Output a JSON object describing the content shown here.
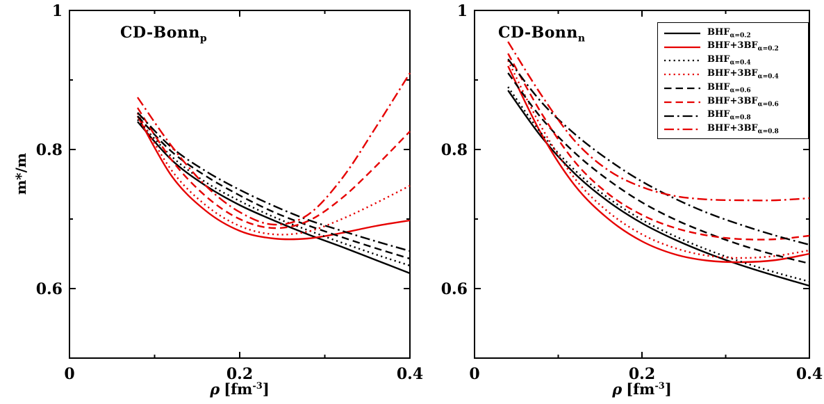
{
  "figure": {
    "background": "#ffffff",
    "frame_color": "#000000",
    "red": "#e60000",
    "black": "#000000"
  },
  "axes": {
    "x_symbol": "ρ",
    "x_unit_pre": "[fm",
    "x_exponent": "-3",
    "x_unit_post": "]",
    "y_label": "m*/m"
  },
  "legend": {
    "items": [
      {
        "main": "BHF",
        "sub": "α=0.2",
        "color": "#000000",
        "dash": "solid"
      },
      {
        "main": "BHF+3BF",
        "sub": "α=0.2",
        "color": "#e60000",
        "dash": "solid"
      },
      {
        "main": "BHF",
        "sub": "α=0.4",
        "color": "#000000",
        "dash": "dotted"
      },
      {
        "main": "BHF+3BF",
        "sub": "α=0.4",
        "color": "#e60000",
        "dash": "dotted"
      },
      {
        "main": "BHF",
        "sub": "α=0.6",
        "color": "#000000",
        "dash": "dashed"
      },
      {
        "main": "BHF+3BF",
        "sub": "α=0.6",
        "color": "#e60000",
        "dash": "dashed"
      },
      {
        "main": "BHF",
        "sub": "α=0.8",
        "color": "#000000",
        "dash": "dashdot"
      },
      {
        "main": "BHF+3BF",
        "sub": "α=0.8",
        "color": "#e60000",
        "dash": "dashdot"
      }
    ]
  },
  "chart_data": [
    {
      "type": "line",
      "title_main": "CD-Bonn",
      "title_sub": "p",
      "xlabel": "ρ [fm^-3]",
      "ylabel": "m*/m",
      "xlim": [
        0,
        0.4
      ],
      "ylim": [
        0.5,
        1.0
      ],
      "grid": false,
      "xticks": {
        "major": [
          0,
          0.2,
          0.4
        ],
        "labels": [
          "0",
          "0.2",
          "0.4"
        ],
        "minor": [
          0.1,
          0.3
        ]
      },
      "yticks": {
        "major": [
          0.6,
          0.8,
          1.0
        ],
        "labels": [
          "0.6",
          "0.8",
          "1"
        ],
        "minor": [
          0.5,
          0.7,
          0.9
        ]
      },
      "series": [
        {
          "name": "BHF α=0.2",
          "color": "#000000",
          "dash": "solid",
          "x": [
            0.08,
            0.12,
            0.16,
            0.2,
            0.24,
            0.28,
            0.32,
            0.36,
            0.4
          ],
          "y": [
            0.84,
            0.785,
            0.748,
            0.72,
            0.698,
            0.678,
            0.66,
            0.641,
            0.622
          ]
        },
        {
          "name": "BHF+3BF α=0.2",
          "color": "#e60000",
          "dash": "solid",
          "x": [
            0.08,
            0.12,
            0.16,
            0.2,
            0.24,
            0.28,
            0.32,
            0.36,
            0.4
          ],
          "y": [
            0.848,
            0.762,
            0.712,
            0.683,
            0.672,
            0.672,
            0.68,
            0.69,
            0.698
          ]
        },
        {
          "name": "BHF α=0.4",
          "color": "#000000",
          "dash": "dotted",
          "x": [
            0.08,
            0.12,
            0.16,
            0.2,
            0.24,
            0.28,
            0.32,
            0.36,
            0.4
          ],
          "y": [
            0.843,
            0.79,
            0.753,
            0.726,
            0.703,
            0.684,
            0.666,
            0.649,
            0.633
          ]
        },
        {
          "name": "BHF+3BF α=0.4",
          "color": "#e60000",
          "dash": "dotted",
          "x": [
            0.08,
            0.12,
            0.16,
            0.2,
            0.24,
            0.28,
            0.32,
            0.36,
            0.4
          ],
          "y": [
            0.852,
            0.77,
            0.72,
            0.69,
            0.678,
            0.682,
            0.7,
            0.723,
            0.748
          ]
        },
        {
          "name": "BHF α=0.6",
          "color": "#000000",
          "dash": "dashed",
          "x": [
            0.08,
            0.12,
            0.16,
            0.2,
            0.24,
            0.28,
            0.32,
            0.36,
            0.4
          ],
          "y": [
            0.848,
            0.797,
            0.762,
            0.734,
            0.71,
            0.691,
            0.674,
            0.658,
            0.643
          ]
        },
        {
          "name": "BHF+3BF α=0.6",
          "color": "#e60000",
          "dash": "dashed",
          "x": [
            0.08,
            0.12,
            0.16,
            0.2,
            0.24,
            0.28,
            0.32,
            0.36,
            0.4
          ],
          "y": [
            0.86,
            0.785,
            0.733,
            0.7,
            0.687,
            0.697,
            0.73,
            0.776,
            0.826
          ]
        },
        {
          "name": "BHF α=0.8",
          "color": "#000000",
          "dash": "dashdot",
          "x": [
            0.08,
            0.12,
            0.16,
            0.2,
            0.24,
            0.28,
            0.32,
            0.36,
            0.4
          ],
          "y": [
            0.853,
            0.803,
            0.769,
            0.742,
            0.719,
            0.699,
            0.683,
            0.668,
            0.654
          ]
        },
        {
          "name": "BHF+3BF α=0.8",
          "color": "#e60000",
          "dash": "dashdot",
          "x": [
            0.08,
            0.12,
            0.16,
            0.2,
            0.24,
            0.28,
            0.32,
            0.36,
            0.4
          ],
          "y": [
            0.875,
            0.805,
            0.748,
            0.71,
            0.692,
            0.706,
            0.758,
            0.832,
            0.91
          ]
        }
      ]
    },
    {
      "type": "line",
      "title_main": "CD-Bonn",
      "title_sub": "n",
      "xlabel": "ρ [fm^-3]",
      "ylabel": "m*/m",
      "xlim": [
        0,
        0.4
      ],
      "ylim": [
        0.5,
        1.0
      ],
      "grid": false,
      "xticks": {
        "major": [
          0,
          0.2,
          0.4
        ],
        "labels": [
          "0",
          "0.2",
          "0.4"
        ],
        "minor": [
          0.1,
          0.3
        ]
      },
      "yticks": {
        "major": [
          0.6,
          0.8,
          1.0
        ],
        "labels": [
          "0.6",
          "0.8",
          "1"
        ],
        "minor": [
          0.5,
          0.7,
          0.9
        ]
      },
      "series": [
        {
          "name": "BHF α=0.2",
          "color": "#000000",
          "dash": "solid",
          "x": [
            0.04,
            0.08,
            0.12,
            0.16,
            0.2,
            0.24,
            0.28,
            0.32,
            0.36,
            0.4
          ],
          "y": [
            0.885,
            0.818,
            0.765,
            0.725,
            0.694,
            0.67,
            0.65,
            0.633,
            0.618,
            0.604
          ]
        },
        {
          "name": "BHF+3BF α=0.2",
          "color": "#e60000",
          "dash": "solid",
          "x": [
            0.04,
            0.08,
            0.12,
            0.16,
            0.2,
            0.24,
            0.28,
            0.32,
            0.36,
            0.4
          ],
          "y": [
            0.92,
            0.822,
            0.748,
            0.7,
            0.668,
            0.649,
            0.64,
            0.638,
            0.641,
            0.65
          ]
        },
        {
          "name": "BHF α=0.4",
          "color": "#000000",
          "dash": "dotted",
          "x": [
            0.04,
            0.08,
            0.12,
            0.16,
            0.2,
            0.24,
            0.28,
            0.32,
            0.36,
            0.4
          ],
          "y": [
            0.89,
            0.823,
            0.77,
            0.73,
            0.699,
            0.675,
            0.655,
            0.638,
            0.623,
            0.61
          ]
        },
        {
          "name": "BHF+3BF α=0.4",
          "color": "#e60000",
          "dash": "dotted",
          "x": [
            0.04,
            0.08,
            0.12,
            0.16,
            0.2,
            0.24,
            0.28,
            0.32,
            0.36,
            0.4
          ],
          "y": [
            0.928,
            0.832,
            0.758,
            0.71,
            0.678,
            0.658,
            0.647,
            0.644,
            0.647,
            0.655
          ]
        },
        {
          "name": "BHF α=0.6",
          "color": "#000000",
          "dash": "dashed",
          "x": [
            0.04,
            0.08,
            0.12,
            0.16,
            0.2,
            0.24,
            0.28,
            0.32,
            0.36,
            0.4
          ],
          "y": [
            0.91,
            0.845,
            0.795,
            0.756,
            0.724,
            0.699,
            0.679,
            0.662,
            0.648,
            0.636
          ]
        },
        {
          "name": "BHF+3BF α=0.6",
          "color": "#e60000",
          "dash": "dashed",
          "x": [
            0.04,
            0.08,
            0.12,
            0.16,
            0.2,
            0.24,
            0.28,
            0.32,
            0.36,
            0.4
          ],
          "y": [
            0.938,
            0.852,
            0.782,
            0.736,
            0.706,
            0.687,
            0.676,
            0.671,
            0.671,
            0.676
          ]
        },
        {
          "name": "BHF α=0.8",
          "color": "#000000",
          "dash": "dashdot",
          "x": [
            0.04,
            0.08,
            0.12,
            0.16,
            0.2,
            0.24,
            0.28,
            0.32,
            0.36,
            0.4
          ],
          "y": [
            0.93,
            0.868,
            0.822,
            0.785,
            0.754,
            0.729,
            0.708,
            0.691,
            0.676,
            0.663
          ]
        },
        {
          "name": "BHF+3BF α=0.8",
          "color": "#e60000",
          "dash": "dashdot",
          "x": [
            0.04,
            0.08,
            0.12,
            0.16,
            0.2,
            0.24,
            0.28,
            0.32,
            0.36,
            0.4
          ],
          "y": [
            0.955,
            0.878,
            0.812,
            0.77,
            0.746,
            0.733,
            0.728,
            0.727,
            0.727,
            0.73
          ]
        }
      ]
    }
  ]
}
